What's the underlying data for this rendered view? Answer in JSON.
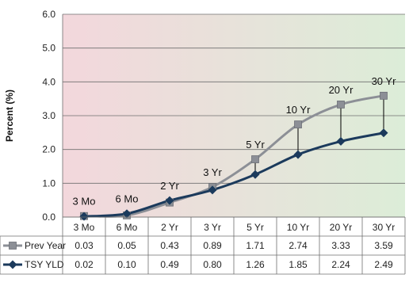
{
  "chart_data": {
    "type": "line",
    "title": "",
    "xlabel": "",
    "ylabel": "Percent (%)",
    "ylim": [
      0,
      6
    ],
    "yticks": [
      "0.0",
      "1.0",
      "2.0",
      "3.0",
      "4.0",
      "5.0",
      "6.0"
    ],
    "grid": true,
    "legend": "data-table",
    "categories": [
      "3 Mo",
      "6 Mo",
      "2 Yr",
      "3 Yr",
      "5 Yr",
      "10 Yr",
      "20 Yr",
      "30 Yr"
    ],
    "point_labels": [
      "3 Mo",
      "6 Mo",
      "2 Yr",
      "3 Yr",
      "5 Yr",
      "10 Yr",
      "20 Yr",
      "30 Yr"
    ],
    "series": [
      {
        "name": "Prev Year",
        "color": "#8c8f96",
        "marker": "square",
        "values": [
          0.03,
          0.05,
          0.43,
          0.89,
          1.71,
          2.74,
          3.33,
          3.59
        ],
        "display": [
          "0.03",
          "0.05",
          "0.43",
          "0.89",
          "1.71",
          "2.74",
          "3.33",
          "3.59"
        ]
      },
      {
        "name": "TSY YLD",
        "color": "#1b3a5c",
        "marker": "diamond",
        "values": [
          0.02,
          0.1,
          0.49,
          0.8,
          1.26,
          1.85,
          2.24,
          2.49
        ],
        "display": [
          "0.02",
          "0.10",
          "0.49",
          "0.80",
          "1.26",
          "1.85",
          "2.24",
          "2.49"
        ]
      }
    ],
    "background_gradient": [
      "#f3d7dc",
      "#dcedd8"
    ],
    "drop_lines": true
  }
}
